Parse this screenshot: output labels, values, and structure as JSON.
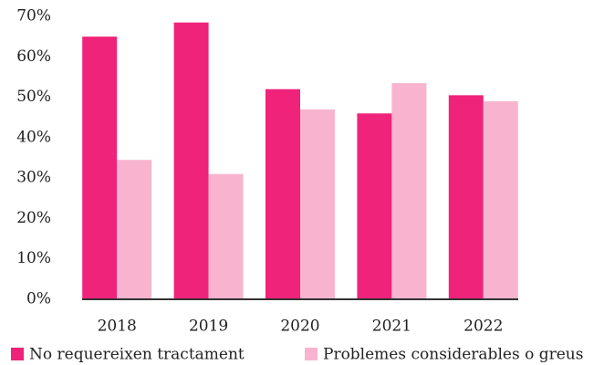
{
  "chart_data": {
    "type": "bar",
    "categories": [
      "2018",
      "2019",
      "2020",
      "2021",
      "2022"
    ],
    "series": [
      {
        "name": "No requereixen tractament",
        "color": "#ef237a",
        "values": [
          65,
          68.5,
          52,
          46,
          50.5
        ]
      },
      {
        "name": "Problemes considerables o greus",
        "color": "#f8b4cf",
        "values": [
          34.5,
          31,
          47,
          53.5,
          49
        ]
      }
    ],
    "ylim": [
      0,
      70
    ],
    "yticks": [
      {
        "value": 0,
        "label": "0%"
      },
      {
        "value": 10,
        "label": "10%"
      },
      {
        "value": 20,
        "label": "20%"
      },
      {
        "value": 30,
        "label": "30%"
      },
      {
        "value": 40,
        "label": "40%"
      },
      {
        "value": 50,
        "label": "50%"
      },
      {
        "value": 60,
        "label": "60%"
      },
      {
        "value": 70,
        "label": "70%"
      }
    ],
    "legend": "bottom"
  }
}
